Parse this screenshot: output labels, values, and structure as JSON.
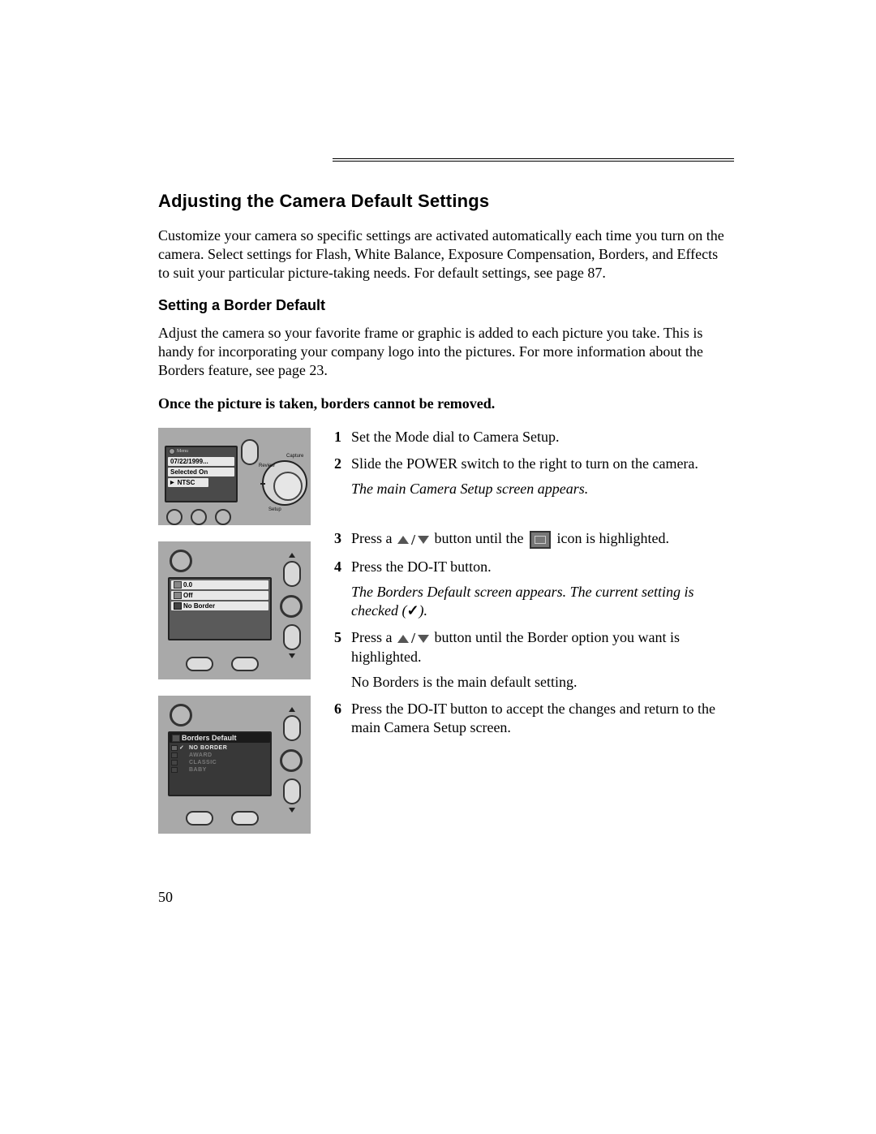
{
  "header_rule": true,
  "h1": "Adjusting the Camera Default Settings",
  "intro": "Customize your camera so specific settings are activated automatically each time you turn on the camera. Select settings for Flash, White Balance, Exposure Compensation, Borders, and Effects to suit your particular picture-taking needs. For default settings, see page 87.",
  "h2": "Setting a Border Default",
  "p2": "Adjust the camera so your favorite frame or graphic is added to each picture you take. This is handy for incorporating your company logo into the pictures. For more information about the Borders feature, see page 23.",
  "warn": "Once the picture is taken, borders cannot be removed.",
  "fig1": {
    "menu_label": "Menu",
    "row1": "07/22/1999...",
    "row2": "Selected On",
    "row3": "NTSC",
    "label_review": "Review",
    "label_capture": "Capture",
    "label_setup": "Setup"
  },
  "fig2": {
    "row1": "0.0",
    "row2": "Off",
    "row3": "No Border"
  },
  "fig3": {
    "title": "Borders Default",
    "rows": [
      "NO BORDER",
      "AWARD",
      "CLASSIC",
      "BABY"
    ],
    "checked_index": 0
  },
  "steps": [
    {
      "n": "1",
      "body": "Set the Mode dial to Camera Setup."
    },
    {
      "n": "2",
      "body": "Slide the POWER switch to the right to turn on the camera.",
      "sub_italic": "The main Camera Setup screen appears."
    },
    {
      "n": "3",
      "pre": "Press a ",
      "post_icon": " button until the ",
      "post_frame": " icon is highlighted.",
      "has_updown": true,
      "has_frame": true
    },
    {
      "n": "4",
      "body": "Press the DO-IT button.",
      "sub_italic_pre": "The Borders Default screen appears. The current setting is checked (",
      "sub_italic_check": "✓",
      "sub_italic_post": ")."
    },
    {
      "n": "5",
      "pre": "Press a ",
      "post_icon": " button until the Border option you want is highlighted.",
      "has_updown": true,
      "sub_plain": "No Borders is the main default setting."
    },
    {
      "n": "6",
      "body": "Press the DO-IT button to accept the changes and return to the main Camera Setup screen."
    }
  ],
  "page_number": "50"
}
